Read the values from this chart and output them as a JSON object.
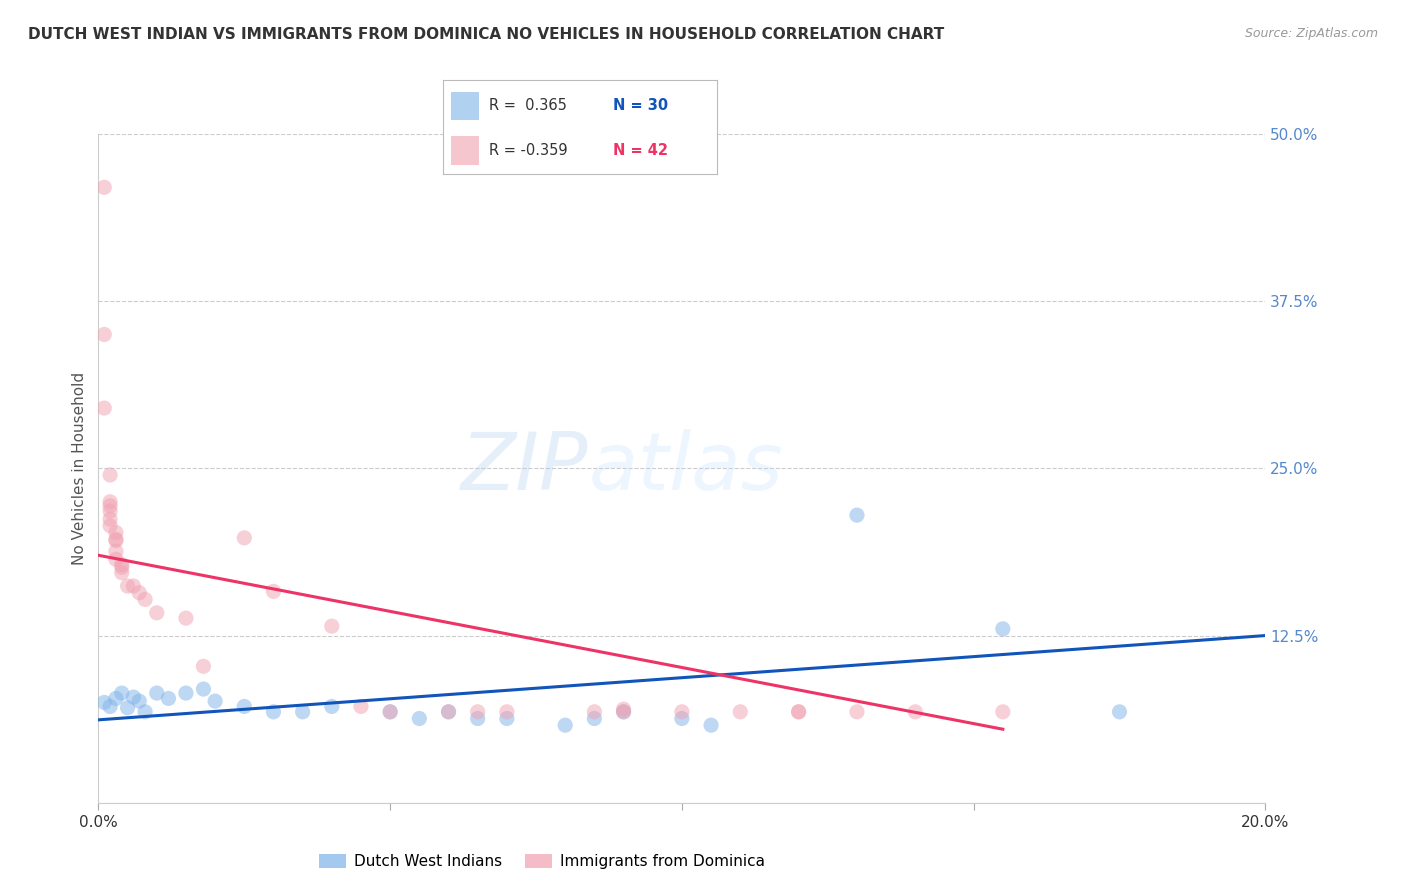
{
  "title": "DUTCH WEST INDIAN VS IMMIGRANTS FROM DOMINICA NO VEHICLES IN HOUSEHOLD CORRELATION CHART",
  "source": "Source: ZipAtlas.com",
  "ylabel": "No Vehicles in Household",
  "xlim": [
    0.0,
    0.2
  ],
  "ylim": [
    0.0,
    0.5
  ],
  "yticks": [
    0.0,
    0.125,
    0.25,
    0.375,
    0.5
  ],
  "xticks": [
    0.0,
    0.05,
    0.1,
    0.15,
    0.2
  ],
  "xtick_labels": [
    "0.0%",
    "",
    "",
    "",
    "20.0%"
  ],
  "watermark_zip": "ZIP",
  "watermark_atlas": "atlas",
  "legend_label_blue": "Dutch West Indians",
  "legend_label_pink": "Immigrants from Dominica",
  "blue_color": "#7EB3E8",
  "pink_color": "#F0A0B0",
  "trendline_blue_color": "#1155BB",
  "trendline_pink_color": "#EE3366",
  "blue_scatter": [
    [
      0.001,
      0.075
    ],
    [
      0.002,
      0.072
    ],
    [
      0.003,
      0.078
    ],
    [
      0.004,
      0.082
    ],
    [
      0.005,
      0.071
    ],
    [
      0.006,
      0.079
    ],
    [
      0.007,
      0.076
    ],
    [
      0.008,
      0.068
    ],
    [
      0.01,
      0.082
    ],
    [
      0.012,
      0.078
    ],
    [
      0.015,
      0.082
    ],
    [
      0.018,
      0.085
    ],
    [
      0.02,
      0.076
    ],
    [
      0.025,
      0.072
    ],
    [
      0.03,
      0.068
    ],
    [
      0.035,
      0.068
    ],
    [
      0.04,
      0.072
    ],
    [
      0.05,
      0.068
    ],
    [
      0.055,
      0.063
    ],
    [
      0.06,
      0.068
    ],
    [
      0.065,
      0.063
    ],
    [
      0.07,
      0.063
    ],
    [
      0.08,
      0.058
    ],
    [
      0.085,
      0.063
    ],
    [
      0.09,
      0.068
    ],
    [
      0.1,
      0.063
    ],
    [
      0.105,
      0.058
    ],
    [
      0.13,
      0.215
    ],
    [
      0.155,
      0.13
    ],
    [
      0.175,
      0.068
    ]
  ],
  "pink_scatter": [
    [
      0.001,
      0.46
    ],
    [
      0.001,
      0.35
    ],
    [
      0.001,
      0.295
    ],
    [
      0.002,
      0.245
    ],
    [
      0.002,
      0.225
    ],
    [
      0.002,
      0.222
    ],
    [
      0.002,
      0.218
    ],
    [
      0.002,
      0.212
    ],
    [
      0.002,
      0.207
    ],
    [
      0.003,
      0.202
    ],
    [
      0.003,
      0.197
    ],
    [
      0.003,
      0.196
    ],
    [
      0.003,
      0.188
    ],
    [
      0.003,
      0.182
    ],
    [
      0.004,
      0.178
    ],
    [
      0.004,
      0.176
    ],
    [
      0.004,
      0.172
    ],
    [
      0.005,
      0.162
    ],
    [
      0.006,
      0.162
    ],
    [
      0.007,
      0.157
    ],
    [
      0.008,
      0.152
    ],
    [
      0.01,
      0.142
    ],
    [
      0.015,
      0.138
    ],
    [
      0.018,
      0.102
    ],
    [
      0.025,
      0.198
    ],
    [
      0.03,
      0.158
    ],
    [
      0.04,
      0.132
    ],
    [
      0.045,
      0.072
    ],
    [
      0.05,
      0.068
    ],
    [
      0.06,
      0.068
    ],
    [
      0.065,
      0.068
    ],
    [
      0.07,
      0.068
    ],
    [
      0.085,
      0.068
    ],
    [
      0.09,
      0.07
    ],
    [
      0.09,
      0.068
    ],
    [
      0.1,
      0.068
    ],
    [
      0.11,
      0.068
    ],
    [
      0.12,
      0.068
    ],
    [
      0.12,
      0.068
    ],
    [
      0.13,
      0.068
    ],
    [
      0.14,
      0.068
    ],
    [
      0.155,
      0.068
    ]
  ],
  "blue_trendline": [
    [
      0.0,
      0.062
    ],
    [
      0.2,
      0.125
    ]
  ],
  "pink_trendline": [
    [
      0.0,
      0.185
    ],
    [
      0.155,
      0.055
    ]
  ],
  "background_color": "#FFFFFF",
  "grid_color": "#CCCCCC",
  "title_color": "#333333",
  "axis_label_color": "#555555",
  "tick_color_y": "#5588CC",
  "marker_size": 120,
  "marker_alpha": 0.5
}
